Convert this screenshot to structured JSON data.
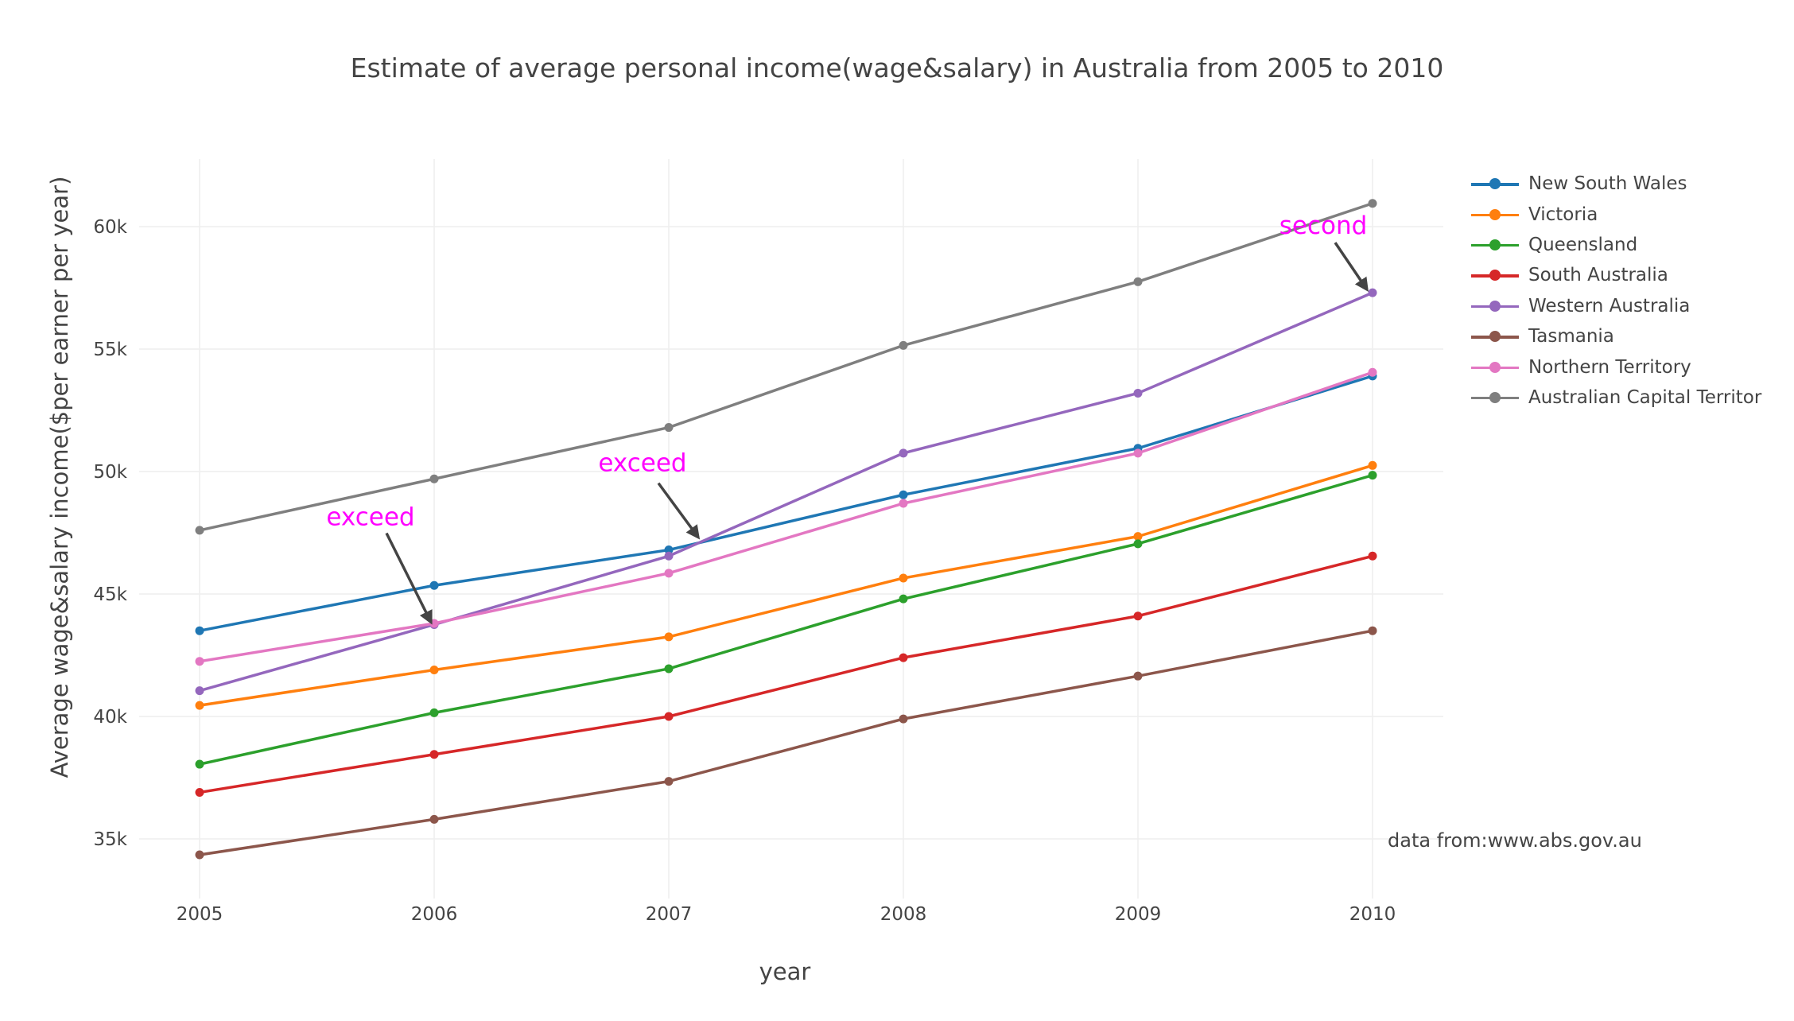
{
  "chart_data": {
    "type": "line",
    "title": "Estimate of average personal income(wage&salary) in Australia from 2005 to 2010",
    "xlabel": "year",
    "ylabel": "Average wage&salary income($per earner per year)",
    "x": [
      2005,
      2006,
      2007,
      2008,
      2009,
      2010
    ],
    "x_ticks": [
      "2005",
      "2006",
      "2007",
      "2008",
      "2009",
      "2010"
    ],
    "y_ticks": [
      35000,
      40000,
      45000,
      50000,
      55000,
      60000
    ],
    "y_tick_labels": [
      "35k",
      "40k",
      "45k",
      "50k",
      "55k",
      "60k"
    ],
    "xlim": [
      2004.75,
      2010.3
    ],
    "ylim": [
      32500,
      62700
    ],
    "grid": true,
    "legend_position": "right",
    "series": [
      {
        "name": "New South Wales",
        "color": "#1f77b4",
        "values": [
          43500,
          45350,
          46800,
          49050,
          50950,
          53900
        ]
      },
      {
        "name": "Victoria",
        "color": "#ff7f0e",
        "values": [
          40450,
          41900,
          43250,
          45650,
          47350,
          50250
        ]
      },
      {
        "name": "Queensland",
        "color": "#2ca02c",
        "values": [
          38050,
          40150,
          41950,
          44800,
          47050,
          49850
        ]
      },
      {
        "name": "South Australia",
        "color": "#d62728",
        "values": [
          36900,
          38450,
          40000,
          42400,
          44100,
          46550
        ]
      },
      {
        "name": "Western Australia",
        "color": "#9467bd",
        "values": [
          41050,
          43750,
          46550,
          50750,
          53200,
          57300
        ]
      },
      {
        "name": "Tasmania",
        "color": "#8c564b",
        "values": [
          34350,
          35800,
          37350,
          39900,
          41650,
          43500
        ]
      },
      {
        "name": "Northern Territory",
        "color": "#e377c2",
        "values": [
          42250,
          43800,
          45850,
          48700,
          50750,
          54050
        ]
      },
      {
        "name": "Australian Capital Territor",
        "color": "#7f7f7f",
        "values": [
          47600,
          49700,
          51800,
          55150,
          57750,
          60950
        ]
      }
    ],
    "annotations": [
      {
        "text": "exceed",
        "x": 2006,
        "y": 43750,
        "color": "#ff00ff"
      },
      {
        "text": "exceed",
        "x": 2007,
        "y": 46700,
        "color": "#ff00ff"
      },
      {
        "text": "second",
        "x": 2010,
        "y": 57300,
        "color": "#ff00ff"
      }
    ],
    "source_note": "data from:www.abs.gov.au"
  }
}
